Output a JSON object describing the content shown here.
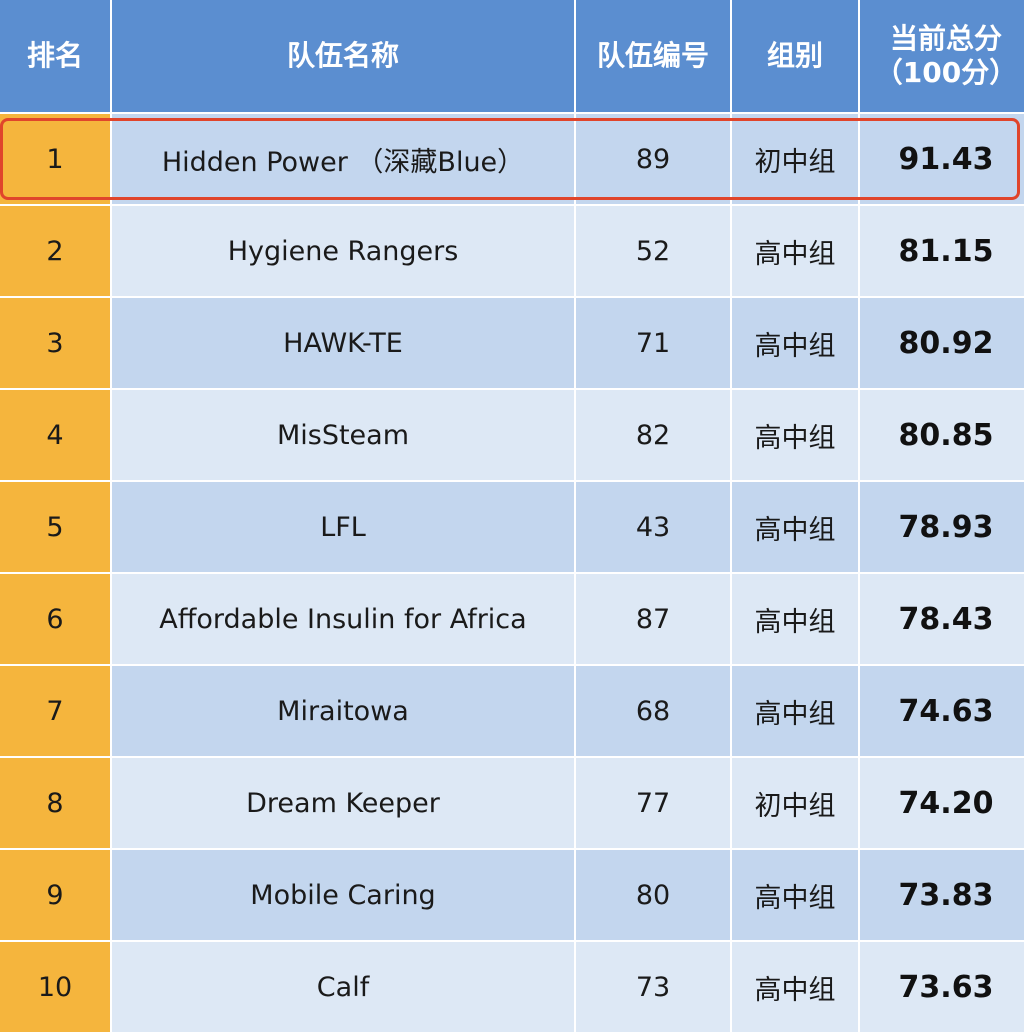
{
  "headers": {
    "rank": "排名",
    "team_name": "队伍名称",
    "team_number": "队伍编号",
    "group": "组别",
    "score_line1": "当前总分",
    "score_line2": "（100分）"
  },
  "rows": [
    {
      "rank": "1",
      "team": "Hidden Power （深藏Blue）",
      "number": "89",
      "group": "初中组",
      "score": "91.43"
    },
    {
      "rank": "2",
      "team": "Hygiene Rangers",
      "number": "52",
      "group": "高中组",
      "score": "81.15"
    },
    {
      "rank": "3",
      "team": "HAWK-TE",
      "number": "71",
      "group": "高中组",
      "score": "80.92"
    },
    {
      "rank": "4",
      "team": "MisSteam",
      "number": "82",
      "group": "高中组",
      "score": "80.85"
    },
    {
      "rank": "5",
      "team": "LFL",
      "number": "43",
      "group": "高中组",
      "score": "78.93"
    },
    {
      "rank": "6",
      "team": "Affordable Insulin for Africa",
      "number": "87",
      "group": "高中组",
      "score": "78.43"
    },
    {
      "rank": "7",
      "team": "Miraitowa",
      "number": "68",
      "group": "高中组",
      "score": "74.63"
    },
    {
      "rank": "8",
      "team": "Dream Keeper",
      "number": "77",
      "group": "初中组",
      "score": "74.20"
    },
    {
      "rank": "9",
      "team": "Mobile Caring",
      "number": "80",
      "group": "高中组",
      "score": "73.83"
    },
    {
      "rank": "10",
      "team": "Calf",
      "number": "73",
      "group": "高中组",
      "score": "73.63"
    }
  ],
  "colors": {
    "header_bg": "#5b8ed0",
    "rank_bg": "#f5b53d",
    "row_odd_bg": "#c3d6ee",
    "row_even_bg": "#dde8f5",
    "highlight_border": "#e0452b"
  }
}
